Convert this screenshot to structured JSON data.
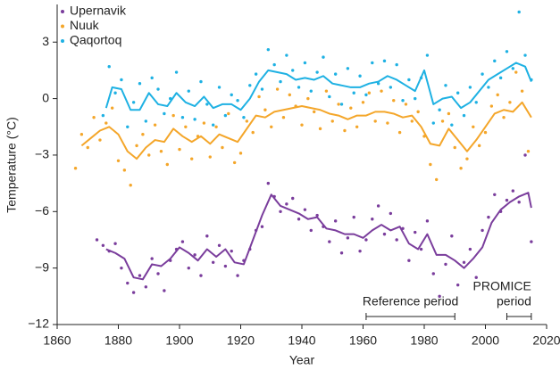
{
  "chart_data": {
    "type": "scatter",
    "x_label": "Year",
    "y_label": "Temperature (°C)",
    "xlim": [
      1860,
      2020
    ],
    "ylim": [
      -12,
      5
    ],
    "xticks": [
      1860,
      1880,
      1900,
      1920,
      1940,
      1960,
      1980,
      2000,
      2020
    ],
    "yticks": [
      {
        "value": -12,
        "label": "−12"
      },
      {
        "value": -9,
        "label": "−9"
      },
      {
        "value": -6,
        "label": "−6"
      },
      {
        "value": -3,
        "label": "−3"
      },
      0,
      3
    ],
    "legend": "top-left",
    "series": [
      {
        "name": "Upernavik",
        "color": "#7a3d9c",
        "x": [
          1873,
          1875,
          1877,
          1879,
          1881,
          1883,
          1885,
          1887,
          1889,
          1891,
          1893,
          1895,
          1897,
          1899,
          1901,
          1903,
          1905,
          1907,
          1909,
          1911,
          1913,
          1915,
          1917,
          1919,
          1921,
          1923,
          1925,
          1927,
          1929,
          1931,
          1933,
          1935,
          1937,
          1939,
          1941,
          1943,
          1945,
          1947,
          1949,
          1951,
          1953,
          1955,
          1957,
          1959,
          1961,
          1963,
          1965,
          1967,
          1969,
          1971,
          1973,
          1975,
          1977,
          1979,
          1981,
          1983,
          1985,
          1987,
          1989,
          1991,
          1993,
          1995,
          1997,
          1999,
          2001,
          2003,
          2005,
          2007,
          2009,
          2011,
          2013,
          2015
        ],
        "values": [
          -7.5,
          -7.8,
          -8.1,
          -7.7,
          -9.0,
          -9.8,
          -10.3,
          -9.4,
          -10.0,
          -8.5,
          -9.3,
          -10.2,
          -8.6,
          -8.0,
          -7.6,
          -9.0,
          -8.3,
          -9.4,
          -7.3,
          -8.7,
          -7.8,
          -8.9,
          -8.1,
          -9.4,
          -8.6,
          -8.0,
          -7.0,
          -6.8,
          -4.5,
          -5.2,
          -6.0,
          -5.6,
          -5.3,
          -6.4,
          -5.9,
          -7.0,
          -6.2,
          -6.8,
          -7.6,
          -6.5,
          -8.2,
          -7.4,
          -6.3,
          -8.1,
          -7.5,
          -6.4,
          -5.7,
          -7.2,
          -6.1,
          -7.5,
          -6.9,
          -8.6,
          -7.1,
          -8.0,
          -6.5,
          -9.3,
          -10.5,
          -8.8,
          -7.3,
          -9.9,
          -8.7,
          -8.0,
          -9.5,
          -7.0,
          -6.3,
          -5.1,
          -6.0,
          -5.4,
          -4.9,
          -5.5,
          -3.0,
          -7.6
        ],
        "trend_x": [
          1876,
          1879,
          1882,
          1885,
          1888,
          1891,
          1894,
          1897,
          1900,
          1903,
          1906,
          1909,
          1912,
          1915,
          1918,
          1921,
          1924,
          1927,
          1930,
          1933,
          1936,
          1939,
          1942,
          1945,
          1948,
          1951,
          1954,
          1957,
          1960,
          1963,
          1966,
          1969,
          1972,
          1975,
          1978,
          1981,
          1984,
          1987,
          1990,
          1993,
          1996,
          1999,
          2002,
          2005,
          2008,
          2011,
          2014,
          2015
        ],
        "trend": [
          -8.0,
          -8.2,
          -8.5,
          -9.5,
          -9.6,
          -8.8,
          -8.9,
          -8.5,
          -7.9,
          -8.2,
          -8.6,
          -8.0,
          -8.4,
          -8.0,
          -8.7,
          -8.8,
          -7.5,
          -6.2,
          -5.1,
          -5.7,
          -5.9,
          -6.1,
          -6.4,
          -6.3,
          -6.9,
          -7.0,
          -7.2,
          -7.2,
          -7.4,
          -7.0,
          -6.7,
          -7.0,
          -6.8,
          -7.7,
          -8.0,
          -7.2,
          -8.3,
          -8.3,
          -8.6,
          -9.0,
          -8.5,
          -7.9,
          -6.6,
          -5.9,
          -5.5,
          -5.2,
          -5.0,
          -5.8
        ]
      },
      {
        "name": "Nuuk",
        "color": "#f4a62a",
        "x": [
          1866,
          1868,
          1870,
          1872,
          1874,
          1876,
          1878,
          1880,
          1882,
          1884,
          1886,
          1888,
          1890,
          1892,
          1894,
          1896,
          1898,
          1900,
          1902,
          1904,
          1906,
          1908,
          1910,
          1912,
          1914,
          1916,
          1918,
          1920,
          1922,
          1924,
          1926,
          1928,
          1930,
          1932,
          1934,
          1936,
          1938,
          1940,
          1942,
          1944,
          1946,
          1948,
          1950,
          1952,
          1954,
          1956,
          1958,
          1960,
          1962,
          1964,
          1966,
          1968,
          1970,
          1972,
          1974,
          1976,
          1978,
          1980,
          1982,
          1984,
          1986,
          1988,
          1990,
          1992,
          1994,
          1996,
          1998,
          2000,
          2002,
          2004,
          2006,
          2008,
          2010,
          2012,
          2014
        ],
        "values": [
          -3.7,
          -1.9,
          -2.6,
          -1.0,
          -2.2,
          -1.3,
          -0.5,
          -3.3,
          -3.8,
          -4.6,
          -2.5,
          -1.9,
          -3.0,
          -1.4,
          -2.8,
          -3.5,
          -0.9,
          -2.7,
          -1.5,
          -3.2,
          -2.0,
          -1.3,
          -3.1,
          -1.5,
          -2.6,
          -0.8,
          -3.4,
          -2.9,
          -1.2,
          -1.8,
          0.1,
          -0.6,
          -1.5,
          0.5,
          -1.0,
          0.2,
          -0.4,
          -1.4,
          0.0,
          -0.7,
          -1.6,
          0.4,
          -1.2,
          -0.3,
          -1.7,
          -0.5,
          -1.5,
          -0.2,
          0.3,
          -1.2,
          0.4,
          -1.3,
          -0.1,
          -1.8,
          -0.3,
          -1.2,
          -0.7,
          -2.0,
          -3.5,
          -4.3,
          -1.2,
          -0.8,
          -2.6,
          -3.7,
          -3.2,
          -1.5,
          -2.5,
          -1.8,
          -0.4,
          0.2,
          -1.0,
          -0.2,
          1.4,
          0.4,
          -2.8
        ],
        "trend_x": [
          1868,
          1871,
          1874,
          1877,
          1880,
          1883,
          1886,
          1889,
          1892,
          1895,
          1898,
          1901,
          1904,
          1907,
          1910,
          1913,
          1916,
          1919,
          1922,
          1925,
          1928,
          1931,
          1934,
          1937,
          1940,
          1943,
          1946,
          1949,
          1952,
          1955,
          1958,
          1961,
          1964,
          1967,
          1970,
          1973,
          1976,
          1979,
          1982,
          1985,
          1988,
          1991,
          1994,
          1997,
          2000,
          2003,
          2006,
          2009,
          2012,
          2015
        ],
        "trend": [
          -2.5,
          -2.1,
          -1.7,
          -1.5,
          -1.9,
          -2.8,
          -3.2,
          -2.6,
          -2.2,
          -2.3,
          -1.6,
          -2.0,
          -2.3,
          -2.0,
          -2.4,
          -1.9,
          -2.1,
          -2.3,
          -1.6,
          -0.9,
          -1.0,
          -0.7,
          -0.6,
          -0.5,
          -0.4,
          -0.5,
          -0.6,
          -0.8,
          -0.9,
          -1.1,
          -0.9,
          -0.9,
          -0.7,
          -0.7,
          -0.8,
          -1.0,
          -0.9,
          -1.5,
          -2.4,
          -2.5,
          -1.6,
          -2.2,
          -2.8,
          -2.2,
          -1.5,
          -0.8,
          -0.6,
          -0.7,
          -0.2,
          -1.0
        ]
      },
      {
        "name": "Qaqortoq",
        "color": "#1eb1e3",
        "x": [
          1875,
          1877,
          1879,
          1881,
          1883,
          1885,
          1887,
          1889,
          1891,
          1893,
          1895,
          1897,
          1899,
          1901,
          1903,
          1905,
          1907,
          1909,
          1911,
          1913,
          1915,
          1917,
          1919,
          1921,
          1923,
          1925,
          1927,
          1929,
          1931,
          1933,
          1935,
          1937,
          1939,
          1941,
          1943,
          1945,
          1947,
          1949,
          1951,
          1953,
          1955,
          1957,
          1959,
          1961,
          1963,
          1965,
          1967,
          1969,
          1971,
          1973,
          1975,
          1977,
          1979,
          1981,
          1983,
          1985,
          1987,
          1989,
          1991,
          1993,
          1995,
          1997,
          1999,
          2001,
          2003,
          2005,
          2007,
          2009,
          2011,
          2013,
          2015
        ],
        "values": [
          -0.9,
          1.7,
          0.3,
          1.0,
          -1.5,
          -0.2,
          0.8,
          -1.2,
          1.1,
          0.5,
          -0.8,
          0.0,
          1.4,
          -1.0,
          0.4,
          -1.1,
          0.9,
          -0.3,
          -1.4,
          0.6,
          -0.9,
          0.2,
          -0.1,
          -1.0,
          0.7,
          1.3,
          0.5,
          2.6,
          1.8,
          0.9,
          2.3,
          1.5,
          0.6,
          1.9,
          0.4,
          1.4,
          2.2,
          0.1,
          1.3,
          -0.3,
          1.6,
          0.3,
          1.2,
          0.2,
          1.9,
          0.8,
          2.0,
          0.6,
          1.8,
          -0.1,
          1.0,
          0.0,
          1.1,
          2.3,
          -1.3,
          -0.6,
          0.7,
          -1.4,
          0.3,
          -0.9,
          0.6,
          -0.2,
          1.3,
          0.6,
          2.0,
          1.1,
          2.5,
          1.6,
          4.6,
          2.3,
          1.0
        ],
        "trend_x": [
          1876,
          1878,
          1881,
          1884,
          1887,
          1890,
          1893,
          1896,
          1899,
          1902,
          1905,
          1908,
          1911,
          1914,
          1917,
          1920,
          1923,
          1926,
          1929,
          1932,
          1935,
          1938,
          1941,
          1944,
          1947,
          1950,
          1953,
          1956,
          1959,
          1962,
          1965,
          1968,
          1971,
          1974,
          1977,
          1980,
          1983,
          1986,
          1989,
          1992,
          1995,
          1998,
          2001,
          2004,
          2007,
          2010,
          2013,
          2015
        ],
        "trend": [
          -0.5,
          0.6,
          0.5,
          -0.6,
          -0.6,
          0.3,
          -0.3,
          -0.4,
          0.3,
          -0.2,
          -0.4,
          0.1,
          -0.5,
          -0.3,
          -0.3,
          -0.6,
          0.0,
          0.9,
          1.5,
          1.4,
          1.3,
          1.0,
          1.1,
          1.0,
          1.2,
          0.8,
          0.7,
          0.6,
          0.6,
          0.8,
          0.9,
          1.2,
          1.0,
          0.7,
          0.4,
          1.5,
          -0.3,
          0.0,
          0.1,
          -0.5,
          -0.2,
          0.4,
          1.0,
          1.3,
          1.6,
          1.9,
          1.7,
          0.9
        ]
      }
    ],
    "annotations": [
      {
        "lines": [
          "Reference period"
        ],
        "x_range": [
          1961,
          1990
        ]
      },
      {
        "lines": [
          "PROMICE",
          "period"
        ],
        "x_range": [
          2007,
          2015
        ]
      }
    ]
  }
}
